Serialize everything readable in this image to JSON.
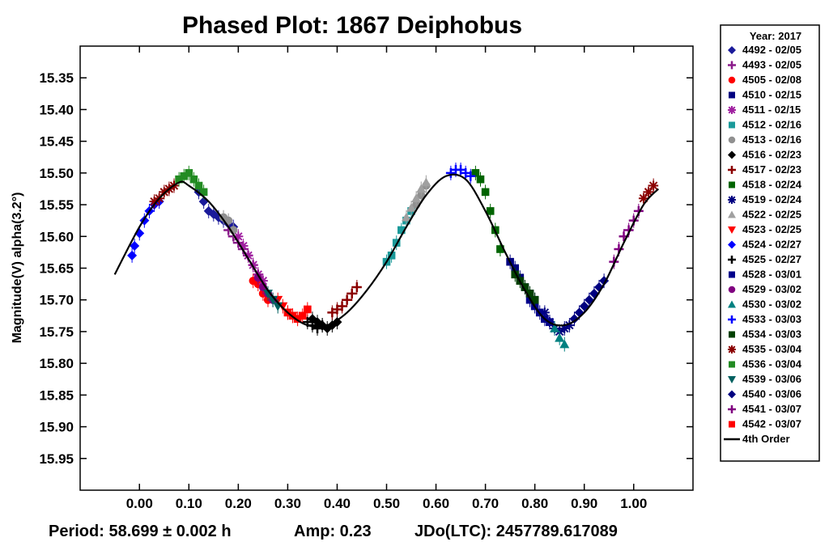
{
  "chart_data": {
    "type": "scatter",
    "title": "Phased Plot: 1867 Deiphobus",
    "xlabel": "",
    "ylabel": "Magnitude(V) alpha(3.2°)",
    "xlim": [
      -0.12,
      1.12
    ],
    "ylim": [
      15.3,
      16.0
    ],
    "y_inverted": true,
    "xticks": [
      "0.00",
      "0.10",
      "0.20",
      "0.30",
      "0.40",
      "0.50",
      "0.60",
      "0.70",
      "0.80",
      "0.90",
      "1.00"
    ],
    "yticks": [
      "15.35",
      "15.40",
      "15.45",
      "15.50",
      "15.55",
      "15.60",
      "15.65",
      "15.70",
      "15.75",
      "15.80",
      "15.85",
      "15.90",
      "15.95"
    ],
    "grid": false,
    "legend_position": "right",
    "legend_title": "Year: 2017",
    "footer": {
      "period": "Period: 58.699 ± 0.002 h",
      "amp": "Amp: 0.23",
      "epoch": "JDo(LTC): 2457789.617089"
    },
    "fit": {
      "name": "4th Order",
      "color": "#000000",
      "x": [
        -0.05,
        0.0,
        0.04,
        0.08,
        0.1,
        0.14,
        0.18,
        0.22,
        0.26,
        0.3,
        0.34,
        0.38,
        0.42,
        0.46,
        0.5,
        0.54,
        0.58,
        0.62,
        0.66,
        0.7,
        0.74,
        0.78,
        0.82,
        0.86,
        0.9,
        0.94,
        0.98,
        1.02,
        1.05
      ],
      "y": [
        15.66,
        15.585,
        15.54,
        15.515,
        15.52,
        15.545,
        15.585,
        15.635,
        15.685,
        15.72,
        15.74,
        15.74,
        15.72,
        15.685,
        15.64,
        15.585,
        15.535,
        15.505,
        15.51,
        15.56,
        15.625,
        15.685,
        15.73,
        15.74,
        15.72,
        15.675,
        15.61,
        15.55,
        15.525
      ]
    },
    "series": [
      {
        "name": "4492 - 02/05",
        "color": "#1a1a9a",
        "marker": "diamond",
        "x": [
          0.12,
          0.13,
          0.14,
          0.15,
          0.16,
          0.17,
          0.18,
          0.19
        ],
        "y": [
          15.53,
          15.545,
          15.56,
          15.565,
          15.57,
          15.575,
          15.58,
          15.585
        ]
      },
      {
        "name": "4493 - 02/05",
        "color": "#8a1a8a",
        "marker": "plus",
        "x": [
          0.18,
          0.19,
          0.2,
          0.21,
          0.22,
          0.23,
          0.24
        ],
        "y": [
          15.59,
          15.6,
          15.61,
          15.62,
          15.63,
          15.645,
          15.66
        ]
      },
      {
        "name": "4505 - 02/08",
        "color": "#ff0000",
        "marker": "circle",
        "x": [
          0.23,
          0.24,
          0.25,
          0.26
        ],
        "y": [
          15.67,
          15.675,
          15.69,
          15.7
        ]
      },
      {
        "name": "4510 - 02/15",
        "color": "#000080",
        "marker": "square",
        "x": [
          0.75,
          0.76,
          0.77,
          0.78,
          0.79,
          0.8
        ],
        "y": [
          15.64,
          15.65,
          15.665,
          15.68,
          15.69,
          15.7
        ]
      },
      {
        "name": "4511 - 02/15",
        "color": "#a020a0",
        "marker": "star",
        "x": [
          0.2,
          0.21,
          0.22,
          0.23,
          0.24,
          0.25
        ],
        "y": [
          15.6,
          15.615,
          15.63,
          15.645,
          15.66,
          15.67
        ]
      },
      {
        "name": "4512 - 02/16",
        "color": "#1a9a9a",
        "marker": "square",
        "x": [
          0.5,
          0.51,
          0.52,
          0.53,
          0.54,
          0.55
        ],
        "y": [
          15.64,
          15.63,
          15.61,
          15.59,
          15.575,
          15.56
        ]
      },
      {
        "name": "4513 - 02/16",
        "color": "#909090",
        "marker": "circle",
        "x": [
          0.17,
          0.18,
          0.19,
          0.56,
          0.57,
          0.58
        ],
        "y": [
          15.57,
          15.575,
          15.59,
          15.55,
          15.535,
          15.52
        ]
      },
      {
        "name": "4516 - 02/23",
        "color": "#000000",
        "marker": "diamond",
        "x": [
          0.35,
          0.36,
          0.37,
          0.38,
          0.39,
          0.4
        ],
        "y": [
          15.73,
          15.735,
          15.74,
          15.745,
          15.74,
          15.735
        ]
      },
      {
        "name": "4517 - 02/23",
        "color": "#8b0000",
        "marker": "plus",
        "x": [
          0.39,
          0.4,
          0.41,
          0.42,
          0.43,
          0.44
        ],
        "y": [
          15.72,
          15.715,
          15.71,
          15.7,
          15.69,
          15.68
        ]
      },
      {
        "name": "4518 - 02/24",
        "color": "#006400",
        "marker": "square",
        "x": [
          0.68,
          0.69,
          0.7,
          0.71,
          0.72,
          0.73
        ],
        "y": [
          15.5,
          15.51,
          15.53,
          15.56,
          15.59,
          15.62
        ]
      },
      {
        "name": "4519 - 02/24",
        "color": "#000080",
        "marker": "star",
        "x": [
          0.82,
          0.83,
          0.84,
          0.85,
          0.86,
          0.87
        ],
        "y": [
          15.72,
          15.735,
          15.745,
          15.75,
          15.745,
          15.74
        ]
      },
      {
        "name": "4522 - 02/25",
        "color": "#a0a0a0",
        "marker": "triangle",
        "x": [
          0.54,
          0.55,
          0.56,
          0.57,
          0.58
        ],
        "y": [
          15.57,
          15.555,
          15.54,
          15.525,
          15.515
        ]
      },
      {
        "name": "4523 - 02/25",
        "color": "#ff0000",
        "marker": "triangle-down",
        "x": [
          0.28,
          0.29,
          0.3,
          0.31
        ],
        "y": [
          15.7,
          15.71,
          15.72,
          15.725
        ]
      },
      {
        "name": "4524 - 02/27",
        "color": "#0000ff",
        "marker": "diamond",
        "x": [
          -0.015,
          -0.01,
          0.0,
          0.01,
          0.02,
          0.03,
          0.04
        ],
        "y": [
          15.63,
          15.615,
          15.595,
          15.575,
          15.56,
          15.55,
          15.545
        ]
      },
      {
        "name": "4525 - 02/27",
        "color": "#000000",
        "marker": "plus",
        "x": [
          0.34,
          0.35,
          0.36,
          0.37
        ],
        "y": [
          15.735,
          15.74,
          15.745,
          15.74
        ]
      },
      {
        "name": "4528 - 03/01",
        "color": "#00008b",
        "marker": "square",
        "x": [
          0.79,
          0.8,
          0.81,
          0.82,
          0.83
        ],
        "y": [
          15.7,
          15.71,
          15.72,
          15.73,
          15.735
        ]
      },
      {
        "name": "4529 - 03/02",
        "color": "#800080",
        "marker": "circle",
        "x": [
          0.24,
          0.25,
          0.26,
          0.27
        ],
        "y": [
          15.665,
          15.68,
          15.69,
          15.7
        ]
      },
      {
        "name": "4530 - 03/02",
        "color": "#008080",
        "marker": "triangle",
        "x": [
          0.84,
          0.85,
          0.86
        ],
        "y": [
          15.745,
          15.76,
          15.77
        ]
      },
      {
        "name": "4533 - 03/03",
        "color": "#0000ff",
        "marker": "plus",
        "x": [
          0.63,
          0.64,
          0.65,
          0.66,
          0.67
        ],
        "y": [
          15.5,
          15.495,
          15.495,
          15.5,
          15.505
        ]
      },
      {
        "name": "4534 - 03/03",
        "color": "#004000",
        "marker": "square",
        "x": [
          0.76,
          0.77,
          0.78,
          0.79,
          0.8
        ],
        "y": [
          15.66,
          15.67,
          15.68,
          15.69,
          15.7
        ]
      },
      {
        "name": "4535 - 03/04",
        "color": "#8b0000",
        "marker": "star",
        "x": [
          0.03,
          0.04,
          0.05,
          0.06,
          0.07,
          1.02,
          1.03,
          1.04
        ],
        "y": [
          15.545,
          15.54,
          15.53,
          15.525,
          15.52,
          15.54,
          15.53,
          15.52
        ]
      },
      {
        "name": "4536 - 03/04",
        "color": "#228b22",
        "marker": "square",
        "x": [
          0.08,
          0.09,
          0.1,
          0.11,
          0.12,
          0.13
        ],
        "y": [
          15.51,
          15.505,
          15.5,
          15.51,
          15.52,
          15.53
        ]
      },
      {
        "name": "4539 - 03/06",
        "color": "#006060",
        "marker": "triangle-down",
        "x": [
          0.26,
          0.27,
          0.28
        ],
        "y": [
          15.69,
          15.7,
          15.71
        ]
      },
      {
        "name": "4540 - 03/06",
        "color": "#000080",
        "marker": "diamond",
        "x": [
          0.88,
          0.89,
          0.9,
          0.91,
          0.92,
          0.93,
          0.94
        ],
        "y": [
          15.73,
          15.72,
          15.71,
          15.7,
          15.69,
          15.68,
          15.67
        ]
      },
      {
        "name": "4541 - 03/07",
        "color": "#800080",
        "marker": "plus",
        "x": [
          0.96,
          0.97,
          0.98,
          0.99,
          1.0,
          1.01
        ],
        "y": [
          15.64,
          15.62,
          15.6,
          15.59,
          15.575,
          15.56
        ]
      },
      {
        "name": "4542 - 03/07",
        "color": "#ff0000",
        "marker": "square",
        "x": [
          0.3,
          0.31,
          0.32,
          0.33,
          0.34
        ],
        "y": [
          15.72,
          15.725,
          15.73,
          15.725,
          15.715
        ]
      }
    ]
  }
}
